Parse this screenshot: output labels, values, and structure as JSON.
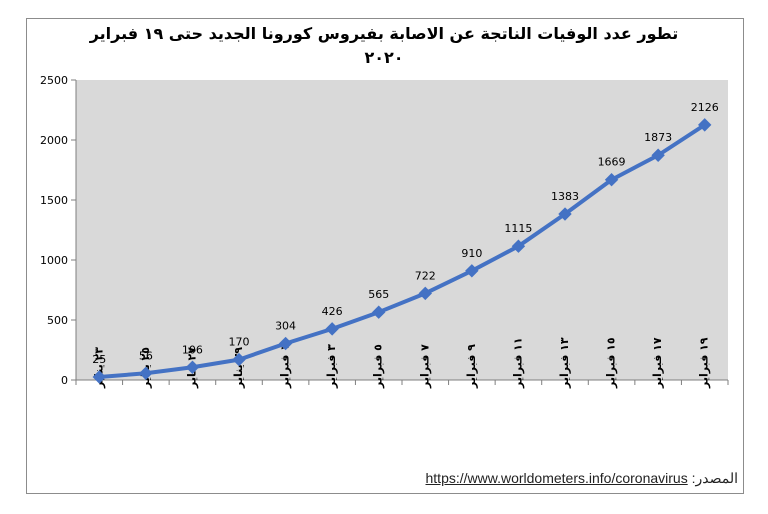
{
  "chart_data": {
    "type": "line",
    "title_line1": "تطور عدد الوفيات الناتجة عن الاصابة بفيروس كورونا الجديد حتى ١٩ فبراير",
    "title_line2": "٢٠٢٠",
    "categories": [
      "٢٣ يناير",
      "٢٥ يناير",
      "٢٧ يناير",
      "٢٩ يناير",
      "١ فبراير",
      "٣ فبراير",
      "٥ فبراير",
      "٧ فبراير",
      "٩ فبراير",
      "١١ فبراير",
      "١٣ فبراير",
      "١٥ فبراير",
      "١٧ فبراير",
      "١٩ فبراير"
    ],
    "values": [
      25,
      56,
      106,
      170,
      304,
      426,
      565,
      722,
      910,
      1115,
      1383,
      1669,
      1873,
      2126
    ],
    "yticks": [
      "0",
      "500",
      "1000",
      "1500",
      "2000",
      "2500"
    ],
    "ylim": [
      0,
      2500
    ],
    "grid": false,
    "plot_background": "#d9d9d9",
    "line_color": "#4472c4"
  },
  "source": {
    "label": "المصدر:",
    "url_text": "https://www.worldometers.info/coronavirus"
  }
}
